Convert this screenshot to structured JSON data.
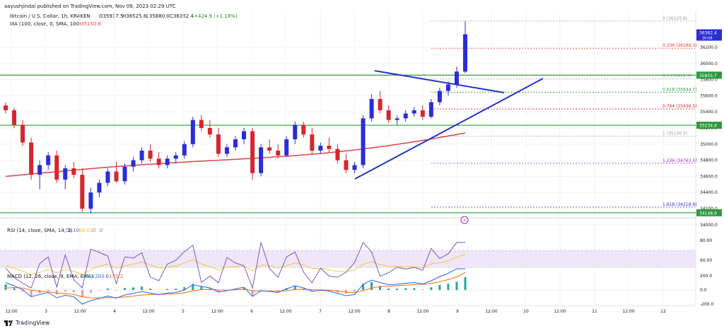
{
  "header": {
    "published_by": "aayushjindal published on TradingView.com, Nov 09, 2023 02:29 UTC",
    "symbol_line": "Bitcoin / U.S. Dollar, 1h, KRAKEN",
    "ohlc": {
      "o": "O35937.5",
      "h": "H36525.8",
      "l": "L35880.0",
      "c": "C36362.4",
      "chg": "+424.9 (+1.18%)"
    },
    "ma_label": "MA (100, close, 0, SMA, 100)",
    "ma_value": "35150.6"
  },
  "colors": {
    "up": "#2a2ed4",
    "down": "#d6262e",
    "ma": "#e0424b",
    "fib": "#9c27b0",
    "hline": "#2e9a3e",
    "trend": "#2433c8",
    "rsi_band": "#efe6f7",
    "rsi_line": "#7e57c2",
    "rsi_mid": "#b39ddb"
  },
  "fib_levels": [
    {
      "label": "0 (36525.8)",
      "value": 36525.8,
      "color": "#9e9e9e"
    },
    {
      "label": "0.236 (36189.3)",
      "value": 36189.3,
      "color": "#e53935"
    },
    {
      "label": "0.5 (35812.9)",
      "value": 35812.9,
      "color": "#9e9e9e"
    },
    {
      "label": "0.618 (35644.7)",
      "value": 35644.7,
      "color": "#2e9a3e"
    },
    {
      "label": "0.764 (35436.5)",
      "value": 35436.5,
      "color": "#d6262e"
    },
    {
      "label": "1 (35100.0)",
      "value": 35100.0,
      "color": "#9e9e9e"
    },
    {
      "label": "1.236 (34763.5)",
      "value": 34763.5,
      "color": "#9c27b0"
    },
    {
      "label": "1.618 (34218.9)",
      "value": 34218.9,
      "color": "#2a2ed4"
    }
  ],
  "price_axis": {
    "ticks": [
      "36200.0",
      "36000.0",
      "35800.0",
      "35600.0",
      "35400.0",
      "35200.0",
      "35000.0",
      "34800.0",
      "34600.0",
      "34400.0",
      "34200.0",
      "34000.0"
    ],
    "current_badge": {
      "price": "36362.4",
      "time": "30:08",
      "value": 36362.4
    },
    "hline_badges": [
      {
        "label": "35855.7",
        "value": 35855.7
      },
      {
        "label": "35234.4",
        "value": 35234.4
      },
      {
        "label": "34148.9",
        "value": 34148.9
      }
    ]
  },
  "rsi": {
    "label": "RSI (14, close, SMA, 14, 2)",
    "v1": "74.10",
    "v2": "66.02",
    "ticks": [
      "80.00",
      "60.00",
      "40.00"
    ]
  },
  "macd": {
    "label": "MACD (12, 26, close, 9, EMA, EMA)",
    "v1": "68.4",
    "v2": "203.6",
    "v3": "135.2",
    "ticks": [
      "200.0",
      "0.0",
      "-200.0"
    ]
  },
  "time_axis": [
    "12:00",
    "3",
    "12:00",
    "4",
    "12:00",
    "5",
    "12:00",
    "6",
    "12:00",
    "7",
    "12:00",
    "8",
    "12:00",
    "9",
    "12:00",
    "10",
    "12:00",
    "11",
    "12:00",
    "12"
  ],
  "footer": {
    "brand": "TradingView"
  },
  "chart_data": {
    "type": "candlestick",
    "title": "Bitcoin / U.S. Dollar, 1h, KRAKEN",
    "ylim": [
      34000,
      36700
    ],
    "ohlc_approx": [
      [
        35480,
        35520,
        35380,
        35420
      ],
      [
        35420,
        35450,
        35200,
        35240
      ],
      [
        35240,
        35300,
        34980,
        35020
      ],
      [
        35020,
        35080,
        34560,
        34620
      ],
      [
        34620,
        34800,
        34440,
        34740
      ],
      [
        34740,
        34900,
        34680,
        34860
      ],
      [
        34860,
        34920,
        34520,
        34560
      ],
      [
        34560,
        34740,
        34440,
        34700
      ],
      [
        34700,
        34780,
        34580,
        34620
      ],
      [
        34620,
        34700,
        34160,
        34200
      ],
      [
        34200,
        34460,
        34140,
        34400
      ],
      [
        34400,
        34560,
        34340,
        34520
      ],
      [
        34520,
        34700,
        34480,
        34660
      ],
      [
        34660,
        34780,
        34520,
        34540
      ],
      [
        34540,
        34760,
        34500,
        34720
      ],
      [
        34720,
        34840,
        34660,
        34800
      ],
      [
        34800,
        34960,
        34760,
        34920
      ],
      [
        34920,
        35000,
        34780,
        34820
      ],
      [
        34820,
        34900,
        34700,
        34740
      ],
      [
        34740,
        34860,
        34700,
        34820
      ],
      [
        34820,
        34900,
        34760,
        34860
      ],
      [
        34860,
        35040,
        34820,
        35000
      ],
      [
        35000,
        35340,
        34960,
        35300
      ],
      [
        35300,
        35360,
        35160,
        35200
      ],
      [
        35200,
        35300,
        35080,
        35120
      ],
      [
        35120,
        35200,
        34840,
        34880
      ],
      [
        34880,
        35000,
        34840,
        34960
      ],
      [
        34960,
        35100,
        34920,
        35060
      ],
      [
        35060,
        35200,
        35000,
        35160
      ],
      [
        35160,
        35200,
        34560,
        34640
      ],
      [
        34640,
        35000,
        34600,
        34960
      ],
      [
        34960,
        35060,
        34880,
        34920
      ],
      [
        34920,
        35000,
        34820,
        34860
      ],
      [
        34860,
        35100,
        34840,
        35060
      ],
      [
        35060,
        35280,
        35000,
        35240
      ],
      [
        35240,
        35280,
        35080,
        35120
      ],
      [
        35120,
        35200,
        34880,
        34920
      ],
      [
        34920,
        35020,
        34880,
        34980
      ],
      [
        34980,
        35080,
        34900,
        34940
      ],
      [
        34940,
        35000,
        34760,
        34800
      ],
      [
        34800,
        34880,
        34640,
        34680
      ],
      [
        34680,
        34780,
        34640,
        34740
      ],
      [
        34740,
        35360,
        34700,
        35320
      ],
      [
        35320,
        35620,
        35280,
        35560
      ],
      [
        35560,
        35660,
        35380,
        35420
      ],
      [
        35420,
        35480,
        35260,
        35300
      ],
      [
        35300,
        35360,
        35240,
        35320
      ],
      [
        35320,
        35420,
        35280,
        35380
      ],
      [
        35380,
        35460,
        35340,
        35420
      ],
      [
        35420,
        35480,
        35300,
        35340
      ],
      [
        35340,
        35560,
        35320,
        35520
      ],
      [
        35520,
        35700,
        35480,
        35660
      ],
      [
        35660,
        35780,
        35600,
        35740
      ],
      [
        35740,
        35960,
        35700,
        35900
      ],
      [
        35900,
        36525,
        35880,
        36362
      ]
    ],
    "ma": {
      "name": "MA (100, close, 0, SMA, 100)",
      "start": 34600,
      "end": 35150
    },
    "horizontal_lines": [
      35855.7,
      35234.4,
      34148.9
    ]
  }
}
